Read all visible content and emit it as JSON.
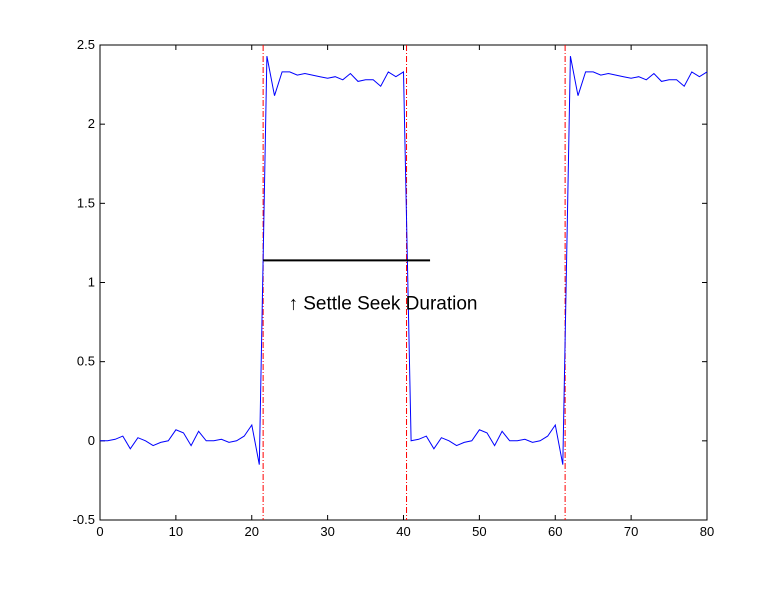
{
  "chart_data": {
    "type": "line",
    "title": "",
    "xlabel": "",
    "ylabel": "",
    "xlim": [
      0,
      80
    ],
    "ylim": [
      -0.5,
      2.5
    ],
    "xticks": [
      0,
      10,
      20,
      30,
      40,
      50,
      60,
      70,
      80
    ],
    "yticks": [
      -0.5,
      0,
      0.5,
      1,
      1.5,
      2,
      2.5
    ],
    "grid": false,
    "series": [
      {
        "color": "#0000ff",
        "x": [
          0,
          1,
          2,
          3,
          4,
          5,
          6,
          7,
          8,
          9,
          10,
          11,
          12,
          13,
          14,
          15,
          16,
          17,
          18,
          19,
          20,
          21,
          22,
          23,
          24,
          25,
          26,
          27,
          28,
          29,
          30,
          31,
          32,
          33,
          34,
          35,
          36,
          37,
          38,
          39,
          40,
          41,
          42,
          43,
          44,
          45,
          46,
          47,
          48,
          49,
          50,
          51,
          52,
          53,
          54,
          55,
          56,
          57,
          58,
          59,
          60,
          61,
          62,
          63,
          64,
          65,
          66,
          67,
          68,
          69,
          70,
          71,
          72,
          73,
          74,
          75,
          76,
          77,
          78,
          79,
          80
        ],
        "y": [
          0,
          0,
          0.01,
          0.03,
          -0.05,
          0.02,
          0,
          -0.03,
          -0.01,
          0,
          0.07,
          0.05,
          -0.03,
          0.06,
          0,
          0,
          0.01,
          -0.01,
          0,
          0.03,
          0.1,
          -0.15,
          2.43,
          2.18,
          2.33,
          2.33,
          2.31,
          2.32,
          2.31,
          2.3,
          2.29,
          2.3,
          2.28,
          2.32,
          2.27,
          2.28,
          2.28,
          2.24,
          2.33,
          2.3,
          2.33,
          0,
          0.01,
          0.03,
          -0.05,
          0.02,
          0,
          -0.03,
          -0.01,
          0,
          0.07,
          0.05,
          -0.03,
          0.06,
          0,
          0,
          0.01,
          -0.01,
          0,
          0.03,
          0.1,
          -0.15,
          2.43,
          2.18,
          2.33,
          2.33,
          2.31,
          2.32,
          2.31,
          2.3,
          2.29,
          2.3,
          2.28,
          2.32,
          2.27,
          2.28,
          2.28,
          2.24,
          2.33,
          2.3,
          2.33
        ]
      }
    ],
    "vlines": {
      "x": [
        21.5,
        40.4,
        61.3
      ],
      "color": "#ff0000",
      "style": "dash-dot"
    },
    "segment": {
      "x": [
        21.5,
        43.5
      ],
      "y": 1.14,
      "color": "#000000"
    },
    "annotation": {
      "text": "↑  Settle Seek Duration",
      "x": 28,
      "y": 0.93
    }
  }
}
